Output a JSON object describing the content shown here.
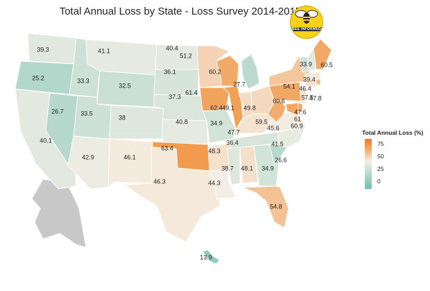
{
  "title": "Total Annual Loss by State - Loss Survey 2014-2015",
  "logo": {
    "text": "BEE INFORMED",
    "icon": "bee-icon"
  },
  "legend": {
    "title": "Total Annual Loss (%)",
    "ticks": [
      "75",
      "50",
      "25",
      "0"
    ],
    "colors": {
      "low": "#6fbfb0",
      "mid": "#f4efe6",
      "high": "#f17d17",
      "nodata": "#c8c8c8"
    }
  },
  "states": [
    {
      "id": "WA",
      "value": "39.3"
    },
    {
      "id": "OR",
      "value": "25.2"
    },
    {
      "id": "CA",
      "value": "40.1"
    },
    {
      "id": "ID",
      "value": "33.3"
    },
    {
      "id": "NV",
      "value": "26.7"
    },
    {
      "id": "MT",
      "value": "41.1"
    },
    {
      "id": "WY",
      "value": "32.5"
    },
    {
      "id": "UT",
      "value": "33.5"
    },
    {
      "id": "AZ",
      "value": "42.9"
    },
    {
      "id": "CO",
      "value": "38"
    },
    {
      "id": "NM",
      "value": "46.1"
    },
    {
      "id": "ND",
      "value": "40.4"
    },
    {
      "id": "SD",
      "value": "36.1"
    },
    {
      "id": "NE",
      "value": "37.3"
    },
    {
      "id": "KS",
      "value": "40.8"
    },
    {
      "id": "OK",
      "value": "63.4"
    },
    {
      "id": "TX",
      "value": "46.3"
    },
    {
      "id": "MN",
      "value": "51.2"
    },
    {
      "id": "IA",
      "value": "61.4"
    },
    {
      "id": "MO",
      "value": "34.9"
    },
    {
      "id": "AR",
      "value": "48.3"
    },
    {
      "id": "LA",
      "value": "44.3"
    },
    {
      "id": "WI",
      "value": "60.2"
    },
    {
      "id": "IL",
      "value": "62.4"
    },
    {
      "id": "MI",
      "value": "27.7"
    },
    {
      "id": "IN",
      "value": "49.1"
    },
    {
      "id": "OH",
      "value": "49.8"
    },
    {
      "id": "KY",
      "value": "47.7"
    },
    {
      "id": "TN",
      "value": "36.4"
    },
    {
      "id": "MS",
      "value": "38.7"
    },
    {
      "id": "AL",
      "value": "48.1"
    },
    {
      "id": "GA",
      "value": "34.9"
    },
    {
      "id": "FL",
      "value": "54.8"
    },
    {
      "id": "SC",
      "value": "26.6"
    },
    {
      "id": "NC",
      "value": "41.5"
    },
    {
      "id": "VA",
      "value": "45.6"
    },
    {
      "id": "WV",
      "value": "59.5"
    },
    {
      "id": "PA",
      "value": "60.6"
    },
    {
      "id": "NY",
      "value": "54.1"
    },
    {
      "id": "VT",
      "value": "33.9"
    },
    {
      "id": "NH",
      "value": "39.4"
    },
    {
      "id": "ME",
      "value": "60.5"
    },
    {
      "id": "MA",
      "value": "46.4"
    },
    {
      "id": "RI",
      "value": "57.5"
    },
    {
      "id": "CT",
      "value": "47.8"
    },
    {
      "id": "NJ",
      "value": "47.6"
    },
    {
      "id": "DE",
      "value": "61"
    },
    {
      "id": "MD",
      "value": "60.9"
    },
    {
      "id": "HI",
      "value": "13.9"
    }
  ]
}
